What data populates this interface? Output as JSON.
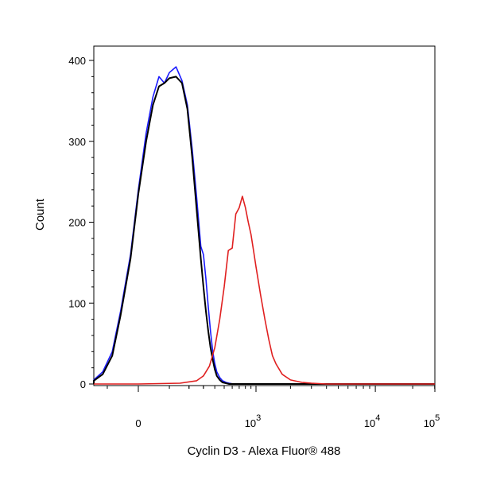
{
  "chart_data": {
    "type": "line",
    "title": "",
    "xlabel": "Cyclin D3 - Alexa Fluor® 488",
    "ylabel": "Count",
    "ylim": [
      0,
      420
    ],
    "yticks": [
      0,
      100,
      200,
      300,
      400
    ],
    "xticks": [
      {
        "base": "0",
        "exp": "",
        "x": 0
      },
      {
        "base": "10",
        "exp": "3",
        "x": 1000
      },
      {
        "base": "10",
        "exp": "4",
        "x": 10000
      },
      {
        "base": "10",
        "exp": "5",
        "x": 100000
      }
    ],
    "x_scale": "biexponential",
    "legend": "none",
    "grid": false,
    "series": [
      {
        "color": "#1a1aff",
        "x": [
          -350,
          -250,
          -180,
          -120,
          -80,
          -50,
          -20,
          0,
          20,
          40,
          60,
          80,
          100,
          130,
          160,
          190,
          220,
          250,
          280,
          300,
          320,
          340,
          360,
          380,
          400,
          420,
          450,
          480,
          520,
          560,
          620,
          700,
          800,
          1000,
          2000,
          10000,
          100000,
          300000
        ],
        "y": [
          0,
          2,
          5,
          15,
          40,
          90,
          160,
          240,
          310,
          355,
          380,
          372,
          385,
          392,
          375,
          345,
          290,
          230,
          170,
          160,
          130,
          95,
          65,
          40,
          25,
          15,
          8,
          4,
          2,
          1,
          0,
          0,
          0,
          0,
          0,
          0,
          0,
          0
        ]
      },
      {
        "color": "#000000",
        "x": [
          -350,
          -250,
          -180,
          -120,
          -80,
          -50,
          -20,
          0,
          20,
          40,
          60,
          80,
          100,
          130,
          160,
          190,
          220,
          250,
          280,
          300,
          320,
          340,
          360,
          380,
          400,
          420,
          450,
          480,
          520,
          560,
          620,
          700,
          800,
          1000,
          2000,
          10000,
          100000,
          300000
        ],
        "y": [
          0,
          1,
          4,
          12,
          35,
          85,
          155,
          235,
          300,
          345,
          368,
          372,
          378,
          380,
          372,
          340,
          280,
          215,
          155,
          120,
          90,
          65,
          45,
          30,
          18,
          10,
          5,
          2,
          1,
          0,
          0,
          0,
          0,
          0,
          0,
          0,
          0,
          0
        ]
      },
      {
        "color": "#e02020",
        "x": [
          -350,
          0,
          150,
          250,
          300,
          350,
          400,
          450,
          500,
          550,
          600,
          650,
          700,
          750,
          800,
          850,
          900,
          950,
          1000,
          1100,
          1200,
          1300,
          1400,
          1500,
          1700,
          2000,
          2500,
          3000,
          4000,
          5000,
          10000,
          100000,
          300000
        ],
        "y": [
          0,
          0,
          1,
          4,
          10,
          22,
          45,
          80,
          120,
          165,
          168,
          210,
          218,
          232,
          218,
          200,
          185,
          165,
          145,
          110,
          80,
          55,
          35,
          25,
          12,
          5,
          2,
          1,
          0,
          0,
          0,
          0,
          0
        ]
      }
    ]
  }
}
